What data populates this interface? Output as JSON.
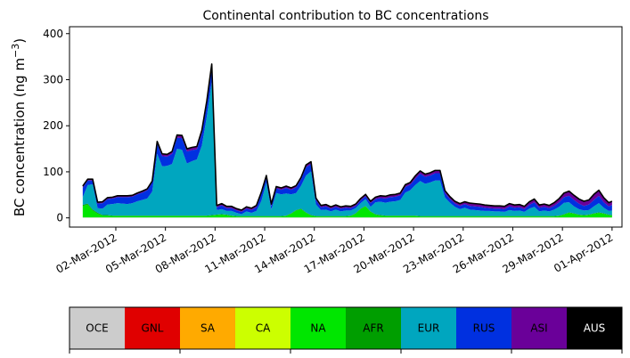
{
  "chart_data": {
    "type": "area",
    "title": "Continental contribution to BC concentrations",
    "xlabel": "",
    "ylabel": "BC concentration (ng m",
    "ylabel_unit_exponent": "−3",
    "ylabel_close": ")",
    "ylim": [
      -20,
      415
    ],
    "yticks": [
      0,
      100,
      200,
      300,
      400
    ],
    "xlim_days": [
      -1.8,
      31.6
    ],
    "xtick_labels": [
      "02-Mar-2012",
      "05-Mar-2012",
      "08-Mar-2012",
      "11-Mar-2012",
      "14-Mar-2012",
      "17-Mar-2012",
      "20-Mar-2012",
      "23-Mar-2012",
      "26-Mar-2012",
      "29-Mar-2012",
      "01-Apr-2012"
    ],
    "xtick_days": [
      1,
      4,
      7,
      10,
      13,
      16,
      19,
      22,
      25,
      28,
      31
    ],
    "grid": false,
    "legend_placement": "bottom",
    "x_days": [
      -1.0,
      -0.7,
      -0.4,
      -0.1,
      0.2,
      0.5,
      0.8,
      1.1,
      1.4,
      1.7,
      2.0,
      2.3,
      2.6,
      2.9,
      3.2,
      3.5,
      3.8,
      4.1,
      4.4,
      4.7,
      5.0,
      5.3,
      5.6,
      5.9,
      6.2,
      6.5,
      6.8,
      7.1,
      7.4,
      7.7,
      8.0,
      8.3,
      8.6,
      8.9,
      9.2,
      9.5,
      9.8,
      10.1,
      10.4,
      10.7,
      11.0,
      11.3,
      11.6,
      11.9,
      12.2,
      12.5,
      12.8,
      13.1,
      13.4,
      13.7,
      14.0,
      14.3,
      14.6,
      14.9,
      15.2,
      15.5,
      15.8,
      16.1,
      16.4,
      16.7,
      17.0,
      17.3,
      17.6,
      17.9,
      18.2,
      18.5,
      18.8,
      19.1,
      19.4,
      19.7,
      20.0,
      20.3,
      20.6,
      20.9,
      21.2,
      21.5,
      21.8,
      22.1,
      22.4,
      22.7,
      23.0,
      23.3,
      23.6,
      23.9,
      24.2,
      24.5,
      24.8,
      25.1,
      25.4,
      25.7,
      26.0,
      26.3,
      26.6,
      26.9,
      27.2,
      27.5,
      27.8,
      28.1,
      28.4,
      28.7,
      29.0,
      29.3,
      29.6,
      29.9,
      30.2,
      30.5,
      30.8,
      31.0
    ],
    "series": [
      {
        "name": "OCE",
        "color": "#cccccc",
        "values": [
          1,
          1,
          1,
          1,
          1,
          1,
          1,
          1,
          1,
          1,
          1,
          1,
          1,
          1,
          1,
          1,
          1,
          1,
          1,
          1,
          1,
          1,
          1,
          1,
          1,
          1,
          1,
          1,
          1,
          1,
          1,
          1,
          1,
          1,
          1,
          1,
          1,
          1,
          1,
          1,
          1,
          1,
          1,
          1,
          1,
          1,
          1,
          1,
          1,
          1,
          1,
          1,
          1,
          1,
          1,
          1,
          1,
          1,
          1,
          1,
          1,
          1,
          1,
          1,
          1,
          1,
          1,
          1,
          1,
          1,
          1,
          1,
          1,
          1,
          1,
          1,
          1,
          1,
          1,
          1,
          1,
          1,
          1,
          1,
          1,
          1,
          1,
          1,
          1,
          1,
          1,
          1,
          1,
          1,
          1,
          1,
          1,
          1,
          1,
          1,
          1,
          1,
          1,
          1,
          1,
          1,
          1,
          1
        ]
      },
      {
        "name": "GNL",
        "color": "#e00000",
        "values": [
          0,
          0,
          0,
          0,
          0,
          0,
          0,
          0,
          0,
          0,
          0,
          0,
          0,
          0,
          0,
          0,
          0,
          0,
          0,
          0,
          0,
          0,
          0,
          0,
          0,
          0,
          0,
          0,
          0,
          0,
          0,
          0,
          0,
          0,
          0,
          0,
          0,
          0,
          0,
          0,
          0,
          0,
          0,
          0,
          0,
          0,
          0,
          0,
          0,
          0,
          0,
          0,
          0,
          0,
          0,
          0,
          0,
          0,
          0,
          0,
          0,
          0,
          0,
          0,
          0,
          0,
          0,
          0,
          0,
          0,
          0,
          0,
          0,
          0,
          0,
          0,
          0,
          0,
          0,
          0,
          0,
          0,
          0,
          0,
          0,
          0,
          0,
          0,
          0,
          0,
          0,
          0,
          0,
          0,
          0,
          0,
          0,
          0,
          0,
          0,
          0,
          0,
          0,
          0,
          0,
          0,
          0,
          0
        ]
      },
      {
        "name": "SA",
        "color": "#ffaa00",
        "values": [
          0,
          0,
          0,
          0,
          0,
          0,
          0,
          0,
          0,
          0,
          0,
          0,
          0,
          0,
          0,
          0,
          0,
          0,
          0,
          0,
          0,
          0,
          0,
          0,
          0,
          0,
          0,
          0,
          0,
          0,
          0,
          0,
          0,
          0,
          0,
          0,
          0,
          0,
          0,
          0,
          0,
          0,
          0,
          0,
          0,
          0,
          0,
          0,
          0,
          0,
          0,
          0,
          0,
          0,
          0,
          0,
          0,
          0,
          0,
          0,
          0,
          0,
          0,
          0,
          0,
          0,
          0,
          0,
          0,
          0,
          0,
          0,
          0,
          0,
          0,
          0,
          0,
          0,
          0,
          0,
          0,
          0,
          0,
          0,
          0,
          0,
          0,
          0,
          0,
          0,
          0,
          0,
          0,
          0,
          0,
          0,
          0,
          0,
          0,
          0,
          0,
          0,
          0,
          0,
          0,
          0,
          0,
          0
        ]
      },
      {
        "name": "CA",
        "color": "#ccff00",
        "values": [
          0,
          0,
          0,
          0,
          0,
          0,
          0,
          0,
          0,
          0,
          0,
          0,
          0,
          0,
          0,
          0,
          0,
          0,
          0,
          0,
          0,
          0,
          0,
          0,
          0,
          0,
          0,
          0,
          0,
          0,
          0,
          0,
          0,
          0,
          0,
          0,
          0,
          0,
          0,
          0,
          0,
          0,
          0,
          0,
          0,
          0,
          0,
          0,
          0,
          0,
          0,
          0,
          0,
          0,
          0,
          0,
          0,
          0,
          0,
          0,
          0,
          0,
          0,
          0,
          0,
          0,
          0,
          0,
          0,
          0,
          0,
          0,
          0,
          0,
          0,
          0,
          0,
          0,
          0,
          0,
          0,
          0,
          0,
          0,
          0,
          0,
          0,
          0,
          0,
          0,
          0,
          0,
          0,
          0,
          0,
          0,
          0,
          0,
          0,
          0,
          0,
          0,
          0,
          0,
          0,
          0,
          0,
          0
        ]
      },
      {
        "name": "NA",
        "color": "#00e600",
        "values": [
          25,
          28,
          15,
          8,
          4,
          4,
          3,
          3,
          3,
          3,
          3,
          3,
          3,
          3,
          3,
          3,
          3,
          3,
          3,
          3,
          3,
          3,
          3,
          3,
          3,
          3,
          4,
          5,
          6,
          5,
          3,
          2,
          2,
          2,
          2,
          2,
          2,
          2,
          2,
          2,
          2,
          3,
          8,
          15,
          18,
          10,
          4,
          2,
          2,
          2,
          2,
          2,
          2,
          2,
          3,
          8,
          18,
          24,
          12,
          6,
          4,
          3,
          3,
          3,
          3,
          3,
          3,
          3,
          2,
          2,
          2,
          2,
          2,
          2,
          2,
          2,
          2,
          2,
          2,
          2,
          2,
          2,
          2,
          2,
          2,
          2,
          2,
          2,
          2,
          2,
          2,
          2,
          2,
          2,
          2,
          2,
          3,
          6,
          10,
          8,
          5,
          4,
          5,
          8,
          10,
          8,
          5,
          4
        ]
      },
      {
        "name": "AFR",
        "color": "#009e00",
        "values": [
          2,
          2,
          2,
          2,
          1,
          1,
          1,
          1,
          1,
          1,
          1,
          1,
          1,
          1,
          1,
          1,
          1,
          1,
          1,
          1,
          1,
          1,
          1,
          1,
          1,
          1,
          1,
          1,
          1,
          1,
          1,
          1,
          1,
          1,
          1,
          1,
          1,
          1,
          1,
          1,
          1,
          1,
          1,
          1,
          1,
          1,
          1,
          1,
          1,
          1,
          1,
          1,
          1,
          1,
          1,
          1,
          1,
          1,
          1,
          1,
          1,
          1,
          1,
          1,
          1,
          1,
          1,
          1,
          1,
          1,
          1,
          1,
          1,
          1,
          1,
          1,
          1,
          1,
          1,
          1,
          1,
          1,
          1,
          1,
          1,
          1,
          1,
          1,
          1,
          1,
          1,
          1,
          1,
          1,
          1,
          1,
          1,
          1,
          1,
          1,
          1,
          1,
          1,
          1,
          1,
          1,
          1,
          1
        ]
      },
      {
        "name": "EUR",
        "color": "#00a6bf",
        "values": [
          17,
          40,
          55,
          10,
          14,
          23,
          25,
          27,
          26,
          25,
          27,
          31,
          34,
          37,
          52,
          134,
          107,
          108,
          112,
          145,
          143,
          113,
          118,
          122,
          152,
          215,
          290,
          10,
          11,
          8,
          10,
          7,
          4,
          10,
          7,
          11,
          33,
          73,
          14,
          50,
          47,
          48,
          41,
          37,
          50,
          80,
          95,
          25,
          13,
          14,
          10,
          14,
          10,
          12,
          11,
          11,
          12,
          15,
          10,
          26,
          29,
          28,
          30,
          31,
          34,
          50,
          55,
          66,
          76,
          70,
          73,
          77,
          77,
          40,
          29,
          20,
          15,
          18,
          14,
          13,
          12,
          11,
          11,
          10,
          10,
          9,
          13,
          11,
          12,
          9,
          16,
          20,
          10,
          12,
          10,
          14,
          19,
          25,
          22,
          15,
          12,
          10,
          10,
          15,
          20,
          12,
          8,
          10
        ]
      },
      {
        "name": "RUS",
        "color": "#0030e0",
        "values": [
          20,
          10,
          8,
          10,
          12,
          12,
          12,
          13,
          14,
          15,
          14,
          15,
          16,
          18,
          20,
          22,
          22,
          20,
          22,
          24,
          25,
          26,
          24,
          22,
          26,
          26,
          30,
          6,
          8,
          6,
          6,
          5,
          5,
          6,
          6,
          8,
          15,
          10,
          8,
          10,
          10,
          12,
          10,
          12,
          14,
          18,
          16,
          10,
          6,
          7,
          6,
          6,
          6,
          6,
          5,
          5,
          6,
          6,
          8,
          7,
          8,
          9,
          10,
          10,
          10,
          12,
          12,
          14,
          16,
          15,
          15,
          16,
          16,
          10,
          8,
          7,
          7,
          8,
          8,
          8,
          8,
          7,
          6,
          6,
          6,
          6,
          8,
          7,
          7,
          6,
          8,
          10,
          8,
          8,
          7,
          8,
          10,
          12,
          14,
          14,
          12,
          10,
          12,
          14,
          16,
          12,
          10,
          12
        ]
      },
      {
        "name": "ASI",
        "color": "#6a0099",
        "values": [
          4,
          3,
          3,
          3,
          3,
          3,
          3,
          3,
          3,
          3,
          3,
          3,
          3,
          3,
          3,
          5,
          5,
          5,
          5,
          6,
          6,
          6,
          6,
          6,
          7,
          8,
          8,
          4,
          4,
          4,
          4,
          4,
          4,
          4,
          4,
          4,
          4,
          5,
          4,
          4,
          4,
          4,
          4,
          4,
          4,
          5,
          5,
          4,
          4,
          4,
          4,
          4,
          4,
          4,
          4,
          4,
          4,
          4,
          4,
          4,
          5,
          5,
          5,
          5,
          5,
          5,
          5,
          6,
          6,
          6,
          6,
          6,
          6,
          5,
          5,
          5,
          5,
          5,
          6,
          6,
          6,
          6,
          6,
          6,
          6,
          6,
          6,
          6,
          6,
          6,
          7,
          7,
          6,
          6,
          6,
          7,
          8,
          9,
          10,
          10,
          10,
          10,
          10,
          12,
          12,
          10,
          8,
          8
        ]
      },
      {
        "name": "AUS",
        "color": "#000000",
        "values": [
          0,
          0,
          0,
          0,
          0,
          0,
          0,
          0,
          0,
          0,
          0,
          0,
          0,
          0,
          0,
          0,
          0,
          0,
          0,
          0,
          0,
          0,
          0,
          0,
          0,
          0,
          0,
          0,
          0,
          0,
          0,
          0,
          0,
          0,
          0,
          0,
          0,
          0,
          0,
          0,
          0,
          0,
          0,
          0,
          0,
          0,
          0,
          0,
          0,
          0,
          0,
          0,
          0,
          0,
          0,
          0,
          0,
          0,
          0,
          0,
          0,
          0,
          0,
          0,
          0,
          0,
          0,
          0,
          0,
          0,
          0,
          0,
          0,
          0,
          0,
          0,
          0,
          0,
          0,
          0,
          0,
          0,
          0,
          0,
          0,
          0,
          0,
          0,
          0,
          0,
          0,
          0,
          0,
          0,
          0,
          0,
          0,
          0,
          0,
          0,
          0,
          0,
          0,
          0,
          0,
          0,
          0,
          0
        ]
      }
    ],
    "legend": [
      {
        "label": "OCE",
        "color": "#cccccc",
        "text_color": "#000000"
      },
      {
        "label": "GNL",
        "color": "#e00000",
        "text_color": "#000000"
      },
      {
        "label": "SA",
        "color": "#ffaa00",
        "text_color": "#000000"
      },
      {
        "label": "CA",
        "color": "#ccff00",
        "text_color": "#000000"
      },
      {
        "label": "NA",
        "color": "#00e600",
        "text_color": "#000000"
      },
      {
        "label": "AFR",
        "color": "#009e00",
        "text_color": "#000000"
      },
      {
        "label": "EUR",
        "color": "#00a6bf",
        "text_color": "#000000"
      },
      {
        "label": "RUS",
        "color": "#0030e0",
        "text_color": "#000000"
      },
      {
        "label": "ASI",
        "color": "#6a0099",
        "text_color": "#000000"
      },
      {
        "label": "AUS",
        "color": "#000000",
        "text_color": "#ffffff"
      }
    ]
  }
}
